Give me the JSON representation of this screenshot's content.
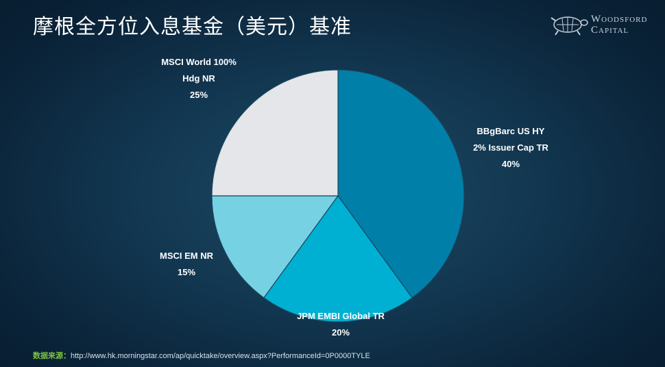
{
  "page": {
    "title": "摩根全方位入息基金（美元）基准",
    "brand": {
      "line1": "Woodsford",
      "line2": "Capital"
    },
    "source_label": "数据来源：",
    "source_url": "http://www.hk.morningstar.com/ap/quicktake/overview.aspx?PerformanceId=0P0000TYLE"
  },
  "chart_data": {
    "type": "pie",
    "slices": [
      {
        "label_lines": [
          "BBgBarc US HY",
          "2% Issuer Cap TR"
        ],
        "pct_text": "40%",
        "value": 40,
        "color": "#0080a8"
      },
      {
        "label_lines": [
          "JPM EMBI Global TR"
        ],
        "pct_text": "20%",
        "value": 20,
        "color": "#00b0d2"
      },
      {
        "label_lines": [
          "MSCI EM NR"
        ],
        "pct_text": "15%",
        "value": 15,
        "color": "#76d2e2"
      },
      {
        "label_lines": [
          "MSCI World 100%",
          "Hdg NR"
        ],
        "pct_text": "25%",
        "value": 25,
        "color": "#e4e6e9"
      }
    ]
  }
}
